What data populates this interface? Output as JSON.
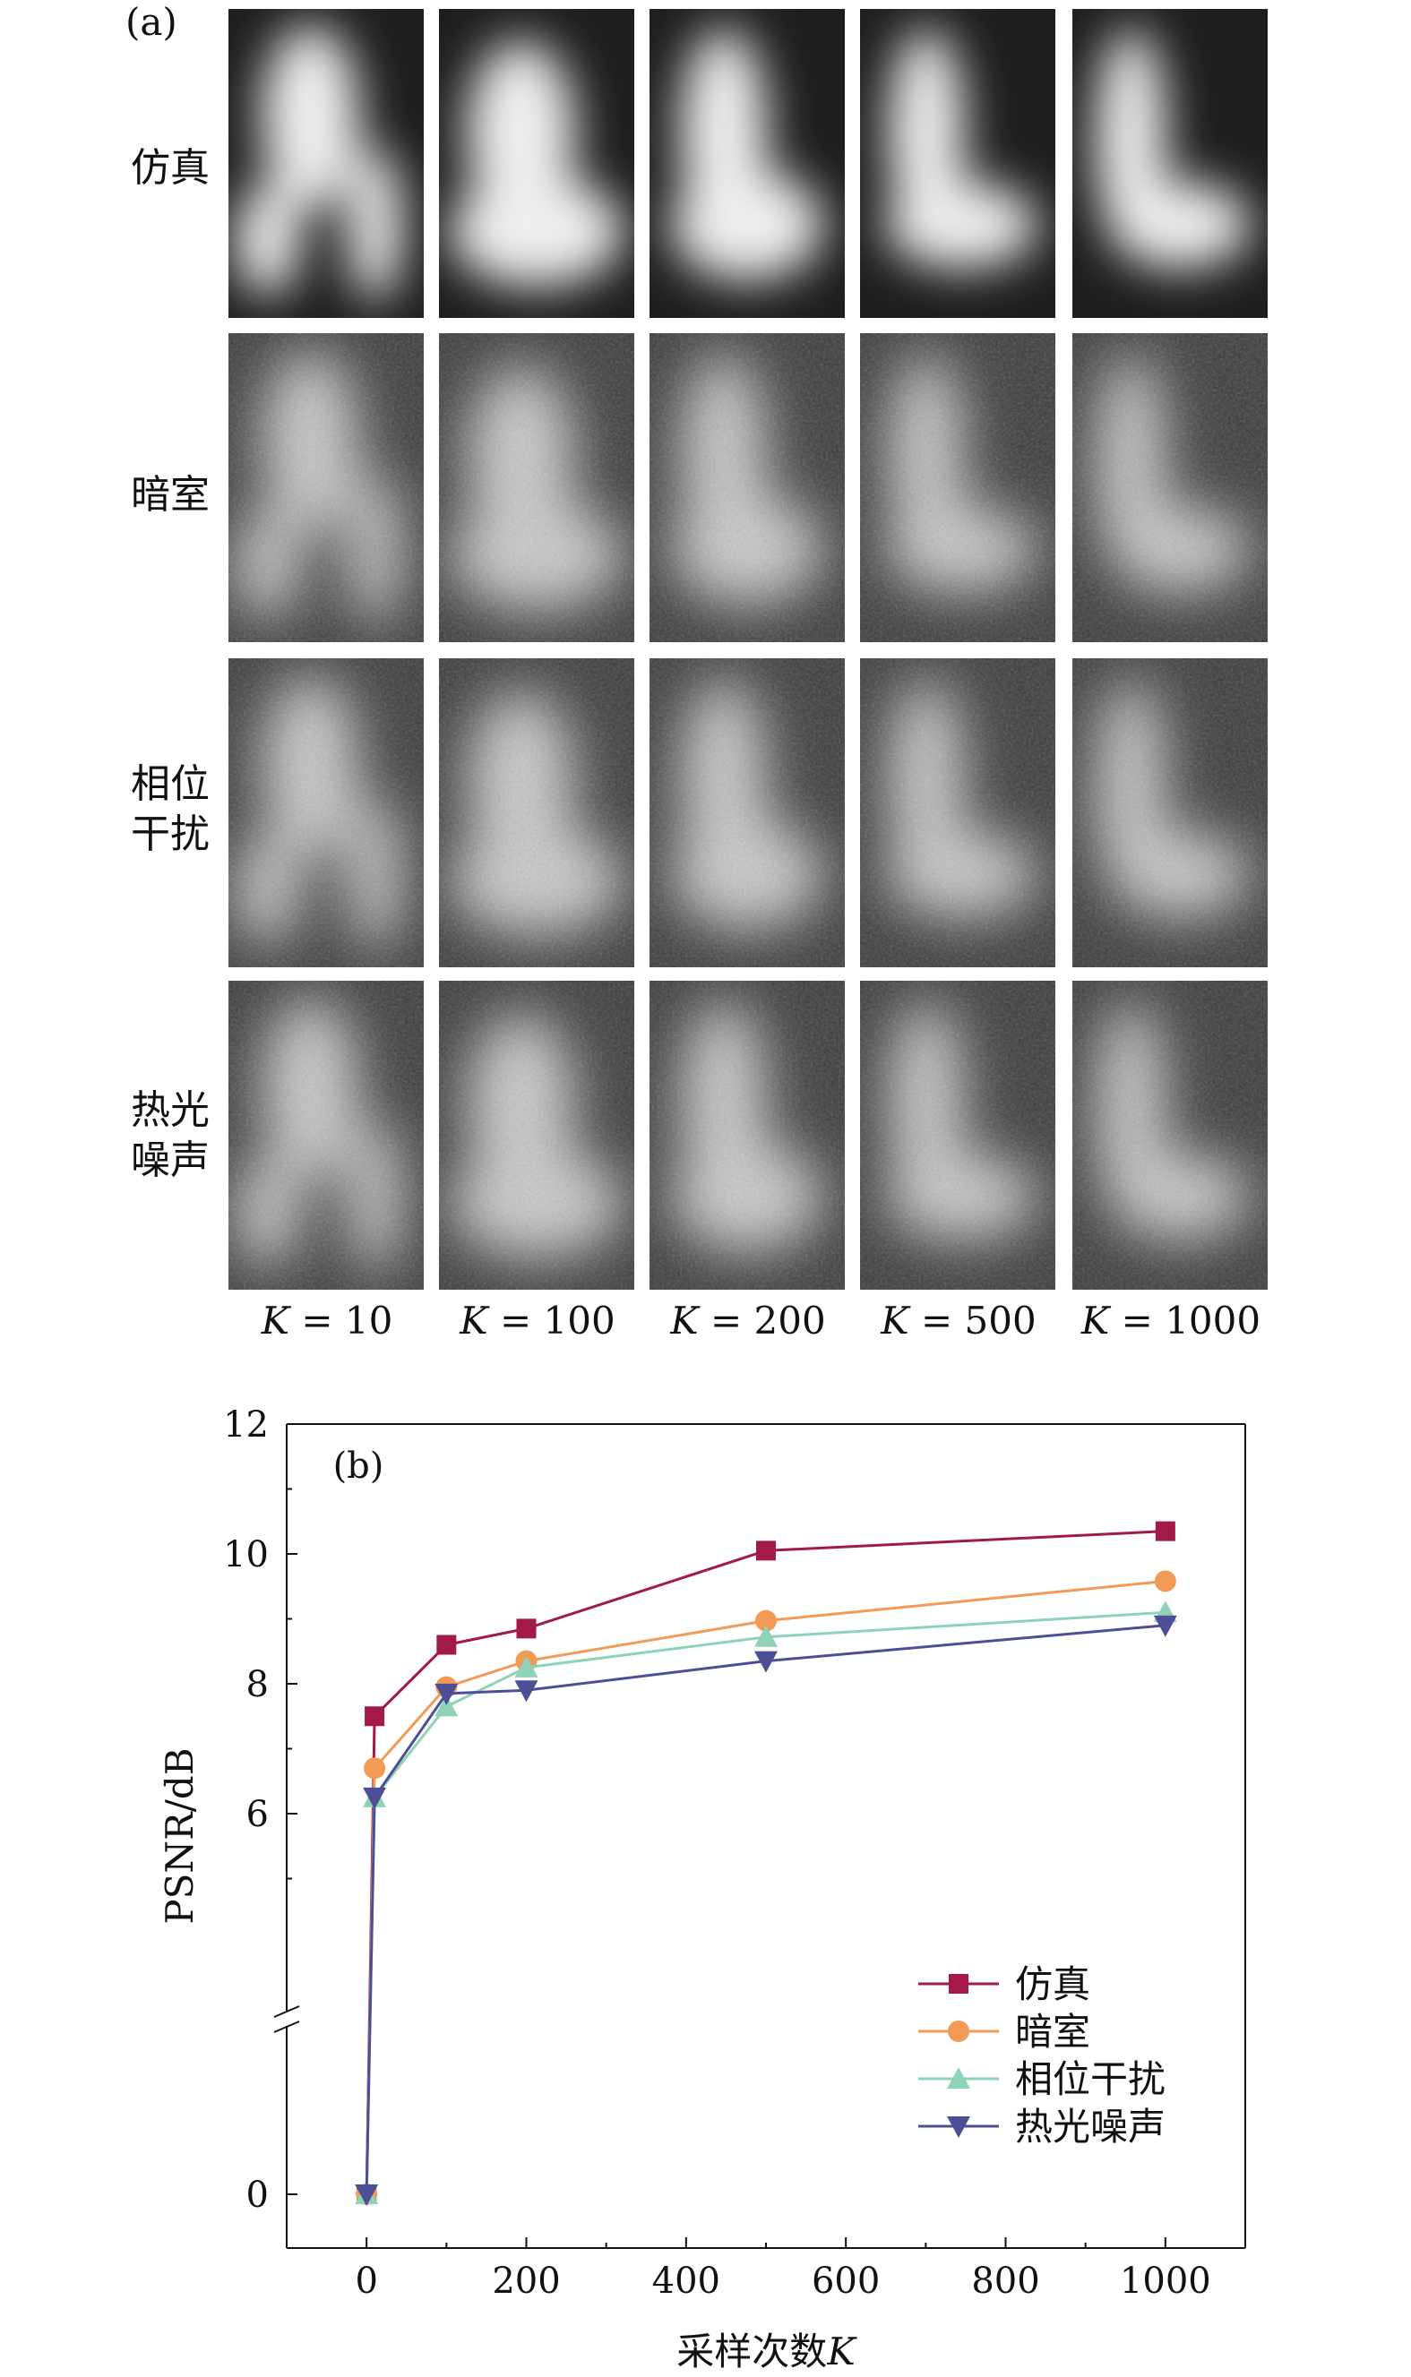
{
  "panel_a": {
    "tag": "(a)",
    "rows": [
      {
        "label_lines": [
          "仿真"
        ]
      },
      {
        "label_lines": [
          "暗室"
        ]
      },
      {
        "label_lines": [
          "相位",
          "干扰"
        ]
      },
      {
        "label_lines": [
          "热光",
          "噪声"
        ]
      }
    ],
    "columns": [
      {
        "var": "K",
        "eq": " = 10"
      },
      {
        "var": "K",
        "eq": " = 100"
      },
      {
        "var": "K",
        "eq": " = 200"
      },
      {
        "var": "K",
        "eq": " = 500"
      },
      {
        "var": "K",
        "eq": " = 1000"
      }
    ]
  },
  "chart_data": {
    "type": "line",
    "panel_tag": "(b)",
    "xlabel_prefix": "采样次数",
    "xlabel_var": "K",
    "ylabel": "PSNR/dB",
    "xlim": [
      -100,
      1100
    ],
    "xticks": [
      0,
      200,
      400,
      600,
      800,
      1000
    ],
    "ylim": [
      4,
      12
    ],
    "yticks": [
      6,
      8,
      10,
      12
    ],
    "y_axis_break": true,
    "y_break_extra_tick": 0,
    "x": [
      0,
      10,
      100,
      200,
      500,
      1000
    ],
    "series": [
      {
        "name": "仿真",
        "color": "#a3194a",
        "marker": "square",
        "values": [
          0,
          7.5,
          8.6,
          8.85,
          10.05,
          10.35
        ]
      },
      {
        "name": "暗室",
        "color": "#f29a56",
        "marker": "circle",
        "values": [
          0,
          6.7,
          7.95,
          8.35,
          8.97,
          9.58
        ]
      },
      {
        "name": "相位干扰",
        "color": "#8ed3b5",
        "marker": "triangle-up",
        "values": [
          0,
          6.25,
          7.65,
          8.25,
          8.72,
          9.1
        ]
      },
      {
        "name": "热光噪声",
        "color": "#4d4f96",
        "marker": "triangle-down",
        "values": [
          0,
          6.25,
          7.85,
          7.9,
          8.35,
          8.9
        ]
      }
    ],
    "legend_position": "bottom-right"
  }
}
